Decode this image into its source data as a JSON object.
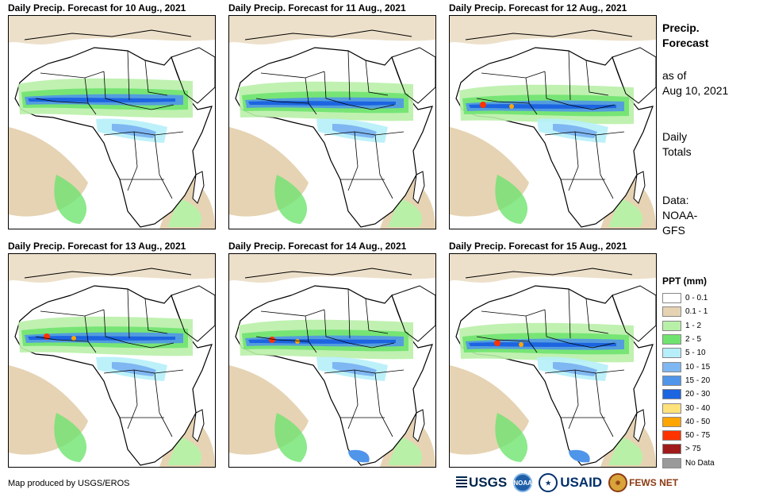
{
  "panels": [
    {
      "title": "Daily Precip. Forecast for 10 Aug., 2021"
    },
    {
      "title": "Daily Precip. Forecast for 11 Aug., 2021"
    },
    {
      "title": "Daily Precip. Forecast for 12 Aug., 2021"
    },
    {
      "title": "Daily Precip. Forecast for 13 Aug., 2021"
    },
    {
      "title": "Daily Precip. Forecast for 14 Aug., 2021"
    },
    {
      "title": "Daily Precip. Forecast for 15 Aug., 2021"
    }
  ],
  "side": {
    "title_line1": "Precip.",
    "title_line2": "Forecast",
    "asof_line1": "as of",
    "asof_line2": "Aug 10, 2021",
    "totals_line1": "Daily",
    "totals_line2": "Totals",
    "data_line1": "Data:",
    "data_line2": "NOAA-",
    "data_line3": "GFS"
  },
  "legend": {
    "title": "PPT (mm)",
    "items": [
      {
        "label": "0 - 0.1",
        "color": "#ffffff"
      },
      {
        "label": "0.1 - 1",
        "color": "#e6d3b3"
      },
      {
        "label": "1 - 2",
        "color": "#b9f0a8"
      },
      {
        "label": "2 - 5",
        "color": "#6fe36f"
      },
      {
        "label": "5 - 10",
        "color": "#b6effa"
      },
      {
        "label": "10 - 15",
        "color": "#7fb7f2"
      },
      {
        "label": "15 - 20",
        "color": "#4f95ea"
      },
      {
        "label": "20 - 30",
        "color": "#1c64e0"
      },
      {
        "label": "30 - 40",
        "color": "#ffe27a"
      },
      {
        "label": "40 - 50",
        "color": "#ffa500"
      },
      {
        "label": "50 - 75",
        "color": "#ff3300"
      },
      {
        "label": "> 75",
        "color": "#a01a1a"
      },
      {
        "label": "No Data",
        "color": "#9a9a9a"
      }
    ]
  },
  "credit": "Map produced by USGS/EROS",
  "logos": {
    "usgs": "USGS",
    "noaa": "NOAA",
    "usaid": "USAID",
    "fews": "FEWS NET"
  }
}
